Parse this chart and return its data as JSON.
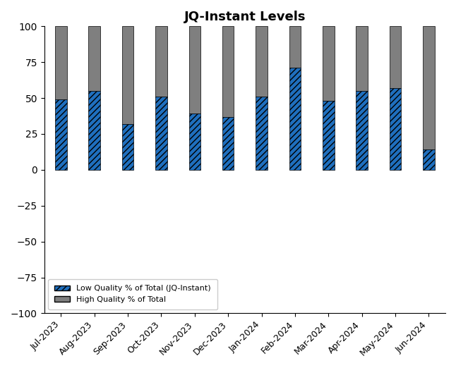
{
  "title": "JQ-Instant Levels",
  "categories": [
    "Jul-2023",
    "Aug-2023",
    "Sep-2023",
    "Oct-2023",
    "Nov-2023",
    "Dec-2023",
    "Jan-2024",
    "Feb-2024",
    "Mar-2024",
    "Apr-2024",
    "May-2024",
    "Jun-2024"
  ],
  "low_quality": [
    49,
    55,
    32,
    51,
    39,
    37,
    51,
    71,
    48,
    55,
    57,
    14
  ],
  "high_quality": [
    51,
    45,
    68,
    49,
    61,
    63,
    49,
    29,
    52,
    45,
    43,
    86
  ],
  "low_color": "#1f6fbe",
  "high_color": "#7f7f7f",
  "ylim": [
    -100,
    100
  ],
  "yticks": [
    -100,
    -75,
    -50,
    -25,
    0,
    25,
    50,
    75,
    100
  ],
  "legend_labels": [
    "Low Quality % of Total (JQ-Instant)",
    "High Quality % of Total"
  ],
  "figsize": [
    6.46,
    5.22
  ],
  "dpi": 100,
  "bar_width": 0.35
}
